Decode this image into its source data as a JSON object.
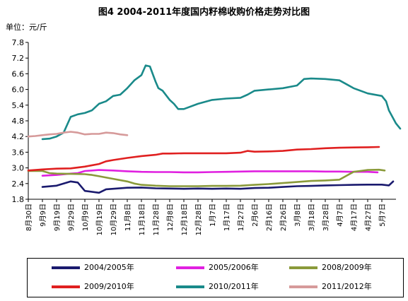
{
  "title": "图4  2004-2011年度国内籽棉收购价格走势对比图",
  "unit_label": "单位：元/斤",
  "chart_data": {
    "type": "line",
    "title": "图4  2004-2011年度国内籽棉收购价格走势对比图",
    "ylabel": "单位：元/斤",
    "xlabel": "",
    "ylim": [
      1.8,
      7.8
    ],
    "yticks": [
      "1.8",
      "2.4",
      "3.0",
      "3.6",
      "4.2",
      "4.8",
      "5.4",
      "6.0",
      "6.6",
      "7.2",
      "7.8"
    ],
    "categories": [
      "8月30日",
      "9月9日",
      "9月19日",
      "9月29日",
      "10月9日",
      "10月19日",
      "10月29日",
      "11月8日",
      "11月18日",
      "11月28日",
      "12月8日",
      "12月18日",
      "12月28日",
      "1月7日",
      "1月17日",
      "1月27日",
      "2月6日",
      "2月16日",
      "2月26日",
      "3月8日",
      "3月18日",
      "3月28日",
      "4月7日",
      "4月17日",
      "4月27日",
      "5月7日"
    ],
    "grid": false,
    "legend_position": "bottom",
    "series": [
      {
        "name": "2004/2005年",
        "color": "#1a1a6e",
        "points": [
          [
            1,
            2.27
          ],
          [
            2,
            2.32
          ],
          [
            3,
            2.48
          ],
          [
            3.5,
            2.44
          ],
          [
            4,
            2.12
          ],
          [
            5,
            2.05
          ],
          [
            5.5,
            2.18
          ],
          [
            6,
            2.2
          ],
          [
            7,
            2.24
          ],
          [
            8,
            2.25
          ],
          [
            9,
            2.22
          ],
          [
            10,
            2.21
          ],
          [
            11,
            2.2
          ],
          [
            12,
            2.21
          ],
          [
            13,
            2.2
          ],
          [
            14,
            2.21
          ],
          [
            15,
            2.2
          ],
          [
            16,
            2.23
          ],
          [
            17,
            2.24
          ],
          [
            18,
            2.27
          ],
          [
            19,
            2.3
          ],
          [
            20,
            2.31
          ],
          [
            21,
            2.33
          ],
          [
            22,
            2.34
          ],
          [
            23,
            2.35
          ],
          [
            24,
            2.36
          ],
          [
            25,
            2.36
          ],
          [
            25.5,
            2.33
          ],
          [
            25.8,
            2.48
          ]
        ]
      },
      {
        "name": "2005/2006年",
        "color": "#e020e0",
        "points": [
          [
            1,
            2.7
          ],
          [
            2,
            2.73
          ],
          [
            3,
            2.78
          ],
          [
            3.5,
            2.8
          ],
          [
            4,
            2.88
          ],
          [
            5,
            2.92
          ],
          [
            6,
            2.9
          ],
          [
            7,
            2.87
          ],
          [
            8,
            2.85
          ],
          [
            9,
            2.84
          ],
          [
            10,
            2.84
          ],
          [
            11,
            2.83
          ],
          [
            12,
            2.83
          ],
          [
            13,
            2.84
          ],
          [
            14,
            2.85
          ],
          [
            15,
            2.86
          ],
          [
            16,
            2.87
          ],
          [
            17,
            2.87
          ],
          [
            18,
            2.87
          ],
          [
            19,
            2.87
          ],
          [
            20,
            2.87
          ],
          [
            21,
            2.86
          ],
          [
            22,
            2.86
          ],
          [
            23,
            2.85
          ],
          [
            24,
            2.85
          ],
          [
            24.7,
            2.83
          ]
        ]
      },
      {
        "name": "2008/2009年",
        "color": "#8a9a3a",
        "points": [
          [
            0,
            2.88
          ],
          [
            1,
            2.88
          ],
          [
            1.5,
            2.8
          ],
          [
            2,
            2.78
          ],
          [
            3,
            2.77
          ],
          [
            4,
            2.76
          ],
          [
            4.5,
            2.73
          ],
          [
            5,
            2.68
          ],
          [
            6,
            2.58
          ],
          [
            7,
            2.48
          ],
          [
            7.5,
            2.4
          ],
          [
            8,
            2.35
          ],
          [
            9,
            2.32
          ],
          [
            10,
            2.3
          ],
          [
            11,
            2.3
          ],
          [
            12,
            2.3
          ],
          [
            13,
            2.31
          ],
          [
            14,
            2.31
          ],
          [
            15,
            2.32
          ],
          [
            16,
            2.35
          ],
          [
            17,
            2.38
          ],
          [
            18,
            2.42
          ],
          [
            19,
            2.46
          ],
          [
            20,
            2.5
          ],
          [
            21,
            2.52
          ],
          [
            22,
            2.55
          ],
          [
            22.5,
            2.7
          ],
          [
            23,
            2.85
          ],
          [
            24,
            2.92
          ],
          [
            24.8,
            2.93
          ],
          [
            25.2,
            2.9
          ]
        ]
      },
      {
        "name": "2009/2010年",
        "color": "#e02020",
        "points": [
          [
            0,
            2.9
          ],
          [
            1,
            2.94
          ],
          [
            2,
            2.97
          ],
          [
            3,
            2.98
          ],
          [
            4,
            3.05
          ],
          [
            5,
            3.15
          ],
          [
            5.5,
            3.25
          ],
          [
            6,
            3.3
          ],
          [
            7,
            3.38
          ],
          [
            8,
            3.45
          ],
          [
            9,
            3.5
          ],
          [
            9.5,
            3.55
          ],
          [
            10,
            3.55
          ],
          [
            11,
            3.56
          ],
          [
            12,
            3.56
          ],
          [
            13,
            3.56
          ],
          [
            14,
            3.56
          ],
          [
            15,
            3.58
          ],
          [
            15.5,
            3.65
          ],
          [
            16,
            3.62
          ],
          [
            17,
            3.63
          ],
          [
            18,
            3.65
          ],
          [
            19,
            3.7
          ],
          [
            20,
            3.72
          ],
          [
            21,
            3.75
          ],
          [
            22,
            3.77
          ],
          [
            23,
            3.78
          ],
          [
            24,
            3.79
          ],
          [
            24.8,
            3.8
          ]
        ]
      },
      {
        "name": "2010/2011年",
        "color": "#1a8a8a",
        "points": [
          [
            1,
            4.1
          ],
          [
            1.5,
            4.12
          ],
          [
            2,
            4.2
          ],
          [
            2.5,
            4.35
          ],
          [
            3,
            4.95
          ],
          [
            3.5,
            5.05
          ],
          [
            4,
            5.1
          ],
          [
            4.5,
            5.2
          ],
          [
            5,
            5.45
          ],
          [
            5.5,
            5.55
          ],
          [
            6,
            5.75
          ],
          [
            6.5,
            5.8
          ],
          [
            7,
            6.05
          ],
          [
            7.5,
            6.35
          ],
          [
            8,
            6.55
          ],
          [
            8.3,
            6.92
          ],
          [
            8.6,
            6.88
          ],
          [
            9,
            6.3
          ],
          [
            9.2,
            6.05
          ],
          [
            9.5,
            5.95
          ],
          [
            10,
            5.6
          ],
          [
            10.3,
            5.45
          ],
          [
            10.6,
            5.25
          ],
          [
            11,
            5.25
          ],
          [
            12,
            5.45
          ],
          [
            13,
            5.6
          ],
          [
            14,
            5.65
          ],
          [
            15,
            5.68
          ],
          [
            15.5,
            5.8
          ],
          [
            16,
            5.95
          ],
          [
            17,
            6.0
          ],
          [
            18,
            6.05
          ],
          [
            19,
            6.15
          ],
          [
            19.5,
            6.4
          ],
          [
            20,
            6.42
          ],
          [
            21,
            6.4
          ],
          [
            22,
            6.35
          ],
          [
            22.5,
            6.2
          ],
          [
            23,
            6.05
          ],
          [
            24,
            5.85
          ],
          [
            25,
            5.75
          ],
          [
            25.3,
            5.55
          ],
          [
            25.5,
            5.2
          ],
          [
            26,
            4.7
          ],
          [
            26.3,
            4.5
          ]
        ]
      },
      {
        "name": "2011/2012年",
        "color": "#d69a9a",
        "points": [
          [
            0,
            4.2
          ],
          [
            0.5,
            4.22
          ],
          [
            1,
            4.25
          ],
          [
            1.5,
            4.28
          ],
          [
            2,
            4.3
          ],
          [
            2.5,
            4.35
          ],
          [
            3,
            4.38
          ],
          [
            3.5,
            4.35
          ],
          [
            4,
            4.28
          ],
          [
            4.5,
            4.3
          ],
          [
            5,
            4.3
          ],
          [
            5.5,
            4.35
          ],
          [
            6,
            4.33
          ],
          [
            6.5,
            4.28
          ],
          [
            7,
            4.25
          ]
        ]
      }
    ]
  },
  "legend": [
    {
      "label": "2004/2005年",
      "color": "#1a1a6e"
    },
    {
      "label": "2005/2006年",
      "color": "#e020e0"
    },
    {
      "label": "2008/2009年",
      "color": "#8a9a3a"
    },
    {
      "label": "2009/2010年",
      "color": "#e02020"
    },
    {
      "label": "2010/2011年",
      "color": "#1a8a8a"
    },
    {
      "label": "2011/2012年",
      "color": "#d69a9a"
    }
  ]
}
